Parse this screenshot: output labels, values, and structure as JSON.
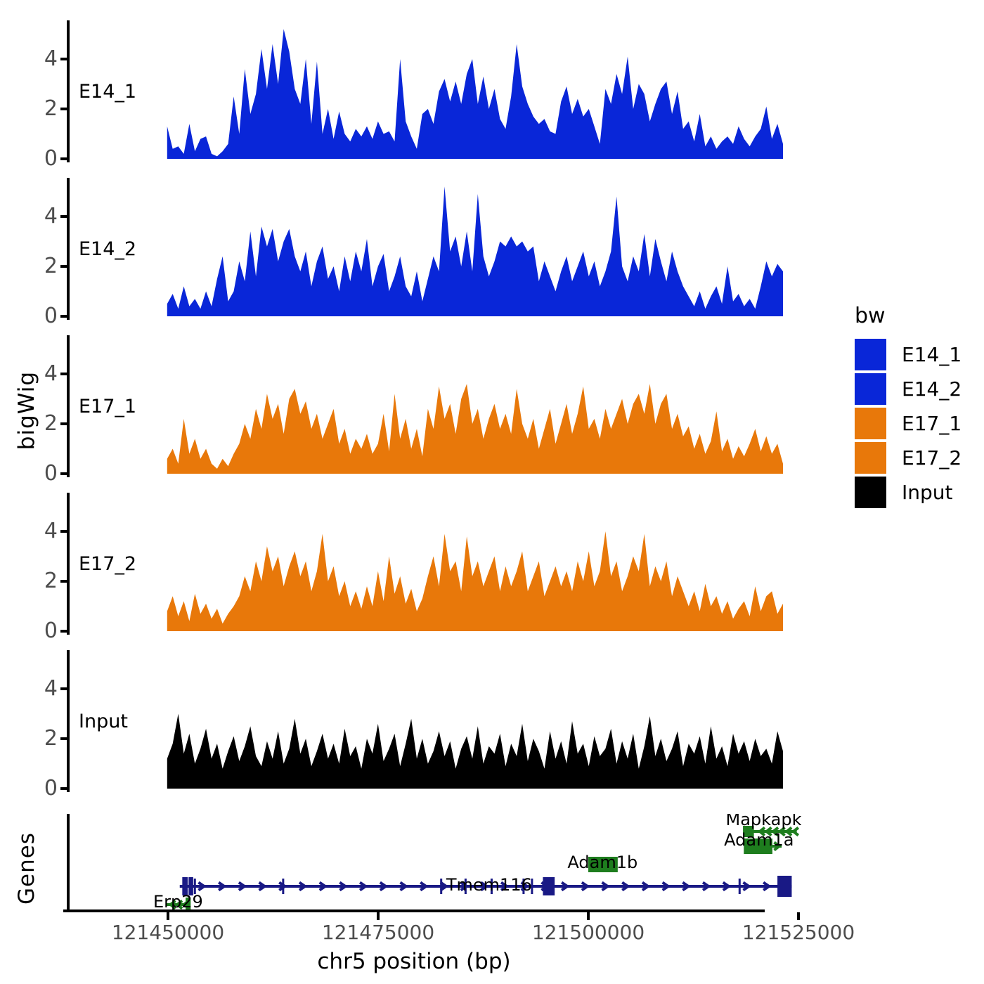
{
  "figure": {
    "ylab": "bigWig",
    "genes_panel_label": "Genes",
    "xlab": "chr5 position (bp)"
  },
  "colors": {
    "blue": "#0926D8",
    "orange": "#E8780A",
    "input_black": "#000000",
    "gene_green": "#1E7D1E",
    "gene_navy": "#191985",
    "axis_text": "#4d4d4d"
  },
  "legend": {
    "title": "bw",
    "entries": [
      {
        "label": "E14_1",
        "color": "#0926D8"
      },
      {
        "label": "E14_2",
        "color": "#0926D8"
      },
      {
        "label": "E17_1",
        "color": "#E8780A"
      },
      {
        "label": "E17_2",
        "color": "#E8780A"
      },
      {
        "label": "Input",
        "color": "#000000"
      }
    ]
  },
  "x_axis": {
    "ticks": [
      121450000,
      121475000,
      121500000,
      121525000
    ],
    "tick_labels": [
      "121450000",
      "121475000",
      "121500000",
      "121525000"
    ],
    "title": "chr5 position (bp)"
  },
  "chart_data": {
    "type": "area",
    "title": "",
    "xlabel": "chr5 position (bp)",
    "ylabel": "bigWig",
    "x_range_bp": [
      121438300,
      121525600
    ],
    "ylim": [
      0,
      5.5
    ],
    "yticks": [
      0,
      2,
      4
    ],
    "grid": false,
    "legend_position": "right",
    "tracks": [
      {
        "name": "E14_1",
        "color": "#0926D8",
        "start_bp": 121449900,
        "step_bp": 660,
        "values": [
          1.3,
          0.4,
          0.5,
          0.2,
          1.4,
          0.3,
          0.8,
          0.9,
          0.2,
          0.1,
          0.3,
          0.6,
          2.5,
          1.0,
          3.6,
          1.8,
          2.6,
          4.4,
          2.8,
          4.6,
          3.0,
          5.2,
          4.3,
          2.8,
          2.2,
          4.0,
          1.4,
          3.9,
          1.0,
          2.0,
          0.8,
          1.9,
          1.0,
          0.7,
          1.2,
          0.9,
          1.3,
          0.8,
          1.5,
          1.0,
          1.1,
          0.7,
          4.0,
          1.5,
          0.9,
          0.4,
          1.8,
          2.0,
          1.4,
          2.7,
          3.2,
          2.3,
          3.1,
          2.2,
          3.4,
          4.0,
          2.2,
          3.3,
          2.0,
          2.8,
          1.6,
          1.2,
          2.5,
          4.6,
          2.9,
          2.2,
          1.7,
          1.4,
          1.6,
          1.1,
          1.0,
          2.3,
          2.9,
          1.8,
          2.4,
          1.7,
          2.0,
          1.3,
          0.6,
          2.8,
          2.2,
          3.4,
          2.6,
          4.1,
          2.0,
          3.0,
          2.6,
          1.5,
          2.2,
          2.8,
          3.1,
          1.8,
          2.7,
          1.2,
          1.5,
          0.7,
          1.8,
          0.5,
          0.9,
          0.4,
          0.7,
          0.9,
          0.6,
          1.3,
          0.8,
          0.5,
          0.9,
          1.2,
          2.1,
          0.8,
          1.4,
          0.6
        ]
      },
      {
        "name": "E14_2",
        "color": "#0926D8",
        "start_bp": 121449900,
        "step_bp": 660,
        "values": [
          0.5,
          0.9,
          0.3,
          1.2,
          0.4,
          0.7,
          0.3,
          1.0,
          0.4,
          1.5,
          2.4,
          0.6,
          1.0,
          2.2,
          1.4,
          3.4,
          1.6,
          3.6,
          2.8,
          3.5,
          2.2,
          3.0,
          3.5,
          2.4,
          1.8,
          2.6,
          1.2,
          2.2,
          2.8,
          1.5,
          2.0,
          1.0,
          2.4,
          1.4,
          2.6,
          1.8,
          3.1,
          1.2,
          2.0,
          2.5,
          1.0,
          1.6,
          2.4,
          1.2,
          0.8,
          1.8,
          0.6,
          1.5,
          2.4,
          1.8,
          5.2,
          2.6,
          3.2,
          2.0,
          3.4,
          1.8,
          4.9,
          2.4,
          1.6,
          2.2,
          3.0,
          2.8,
          3.2,
          2.8,
          3.0,
          2.6,
          2.8,
          1.4,
          2.2,
          1.6,
          1.0,
          1.8,
          2.4,
          1.4,
          2.0,
          2.6,
          1.6,
          2.2,
          1.2,
          1.8,
          2.6,
          4.8,
          2.0,
          1.4,
          2.4,
          1.8,
          3.3,
          1.6,
          3.1,
          2.2,
          1.4,
          2.6,
          1.8,
          1.2,
          0.8,
          0.4,
          1.0,
          0.3,
          0.8,
          1.2,
          0.5,
          2.0,
          0.6,
          0.9,
          0.4,
          0.7,
          0.3,
          1.2,
          2.2,
          1.6,
          2.1,
          1.8
        ]
      },
      {
        "name": "E17_1",
        "color": "#E8780A",
        "start_bp": 121449900,
        "step_bp": 660,
        "values": [
          0.6,
          1.0,
          0.4,
          2.2,
          0.8,
          1.4,
          0.6,
          1.0,
          0.4,
          0.2,
          0.6,
          0.3,
          0.8,
          1.2,
          2.0,
          1.4,
          2.6,
          1.8,
          3.2,
          2.2,
          2.8,
          1.6,
          3.0,
          3.4,
          2.4,
          2.9,
          1.8,
          2.4,
          1.4,
          2.0,
          2.6,
          1.2,
          1.8,
          0.8,
          1.4,
          1.0,
          1.6,
          0.8,
          1.2,
          2.4,
          0.9,
          3.2,
          1.4,
          2.2,
          1.0,
          1.8,
          0.7,
          2.6,
          1.8,
          3.5,
          2.2,
          2.8,
          1.6,
          3.0,
          3.6,
          2.0,
          2.6,
          1.4,
          2.2,
          2.8,
          1.8,
          2.4,
          1.6,
          3.4,
          2.0,
          1.4,
          2.2,
          1.0,
          1.8,
          2.6,
          1.2,
          2.0,
          2.8,
          1.6,
          2.4,
          3.5,
          1.8,
          2.2,
          1.4,
          2.6,
          1.8,
          2.4,
          3.0,
          2.0,
          2.8,
          3.2,
          2.4,
          3.6,
          2.0,
          2.8,
          3.2,
          1.8,
          2.4,
          1.5,
          1.9,
          1.0,
          1.6,
          0.8,
          1.3,
          2.5,
          0.9,
          1.4,
          0.6,
          1.1,
          0.7,
          1.2,
          1.8,
          0.9,
          1.5,
          0.8,
          1.2,
          0.4
        ]
      },
      {
        "name": "E17_2",
        "color": "#E8780A",
        "start_bp": 121449900,
        "step_bp": 660,
        "values": [
          0.8,
          1.4,
          0.6,
          1.2,
          0.4,
          1.5,
          0.7,
          1.1,
          0.5,
          0.9,
          0.3,
          0.7,
          1.0,
          1.4,
          2.2,
          1.6,
          2.8,
          2.0,
          3.4,
          2.4,
          3.0,
          1.8,
          2.6,
          3.2,
          2.2,
          2.8,
          1.6,
          2.4,
          3.9,
          2.0,
          2.6,
          1.4,
          2.0,
          1.0,
          1.6,
          0.9,
          1.8,
          1.0,
          2.4,
          1.2,
          3.0,
          1.5,
          2.2,
          1.1,
          1.7,
          0.8,
          1.3,
          2.2,
          3.0,
          1.8,
          3.9,
          2.4,
          2.8,
          1.6,
          3.8,
          2.2,
          2.8,
          1.8,
          2.4,
          3.0,
          1.6,
          2.6,
          1.8,
          2.4,
          3.2,
          1.6,
          2.2,
          2.8,
          1.4,
          2.0,
          2.6,
          1.8,
          2.4,
          1.6,
          2.8,
          2.0,
          3.2,
          1.8,
          2.4,
          4.0,
          2.2,
          2.8,
          1.6,
          2.2,
          3.0,
          2.4,
          3.9,
          1.8,
          2.6,
          2.0,
          2.8,
          1.4,
          2.2,
          1.6,
          1.0,
          1.6,
          0.8,
          1.9,
          1.0,
          1.4,
          0.7,
          1.2,
          0.5,
          0.9,
          1.2,
          0.6,
          1.8,
          0.8,
          1.4,
          1.6,
          0.7,
          1.1
        ]
      },
      {
        "name": "Input",
        "color": "#000000",
        "start_bp": 121449900,
        "step_bp": 660,
        "values": [
          1.2,
          1.8,
          3.0,
          1.4,
          2.2,
          1.0,
          1.6,
          2.4,
          1.2,
          1.8,
          0.8,
          1.5,
          2.1,
          1.1,
          1.7,
          2.5,
          1.3,
          0.9,
          1.9,
          1.2,
          2.3,
          1.0,
          1.6,
          2.8,
          1.4,
          2.0,
          0.9,
          1.5,
          2.2,
          1.2,
          1.8,
          1.0,
          2.4,
          1.3,
          1.7,
          0.8,
          2.0,
          1.4,
          2.6,
          1.1,
          1.6,
          2.2,
          0.9,
          1.8,
          2.8,
          1.2,
          2.0,
          1.0,
          1.5,
          2.3,
          1.3,
          1.9,
          0.8,
          1.6,
          2.1,
          1.2,
          2.5,
          1.0,
          1.7,
          1.4,
          2.2,
          0.9,
          1.8,
          1.3,
          2.6,
          1.1,
          2.0,
          1.5,
          0.8,
          2.3,
          1.2,
          1.9,
          1.0,
          2.7,
          1.4,
          1.8,
          0.9,
          2.1,
          1.3,
          1.6,
          2.4,
          1.0,
          1.9,
          1.2,
          2.2,
          0.8,
          1.7,
          2.9,
          1.3,
          2.0,
          1.1,
          1.6,
          2.3,
          0.9,
          1.8,
          1.4,
          2.1,
          1.0,
          2.5,
          1.2,
          1.7,
          0.9,
          2.2,
          1.4,
          1.9,
          1.1,
          2.0,
          1.3,
          1.6,
          1.0,
          2.3,
          1.5
        ]
      }
    ]
  },
  "genes": [
    {
      "name": "Mapkapk5",
      "color": "#1E7D1E",
      "strand": "-",
      "row": 25,
      "label_bp": 121521500,
      "label_dy": -9,
      "asz": 7,
      "line": [
        121519600,
        121524800
      ],
      "boxes": [
        [
          121518400,
          121519700,
          16
        ]
      ],
      "arrows": {
        "from": 121520400,
        "to": 121524600,
        "step": 800,
        "dir": -1
      }
    },
    {
      "name": "Adam1a",
      "color": "#1E7D1E",
      "strand": "+",
      "row": 46,
      "label_bp": 121520300,
      "label_dy": -1,
      "asz": 7,
      "line": [
        121521900,
        121523000
      ],
      "boxes": [
        [
          121518500,
          121521900,
          22
        ]
      ],
      "arrows": {
        "from": 121522700,
        "to": 121522700,
        "step": 800,
        "dir": 1
      }
    },
    {
      "name": "Adam1b",
      "color": "#1E7D1E",
      "strand": "+",
      "row": 72,
      "label_bp": 121501700,
      "label_dy": 5,
      "asz": 7,
      "boxes": [
        [
          121500000,
          121503500,
          22
        ]
      ]
    },
    {
      "name": "Tmem116",
      "color": "#191985",
      "strand": "+",
      "row": 103,
      "label_bp": 121488200,
      "label_dy": 6,
      "asz": 8,
      "line": [
        121451400,
        121524200
      ],
      "boxes": [
        [
          121451700,
          121452350,
          26
        ],
        [
          121452450,
          121453000,
          26
        ],
        [
          121494600,
          121496000,
          26
        ],
        [
          121522500,
          121524200,
          30
        ]
      ],
      "ticks": [
        121453200,
        121463700,
        121482500,
        121485400,
        121488500,
        121492300,
        121493300,
        121518000
      ],
      "arrows": {
        "from": 121454300,
        "to": 121521600,
        "step": 2400,
        "dir": 1
      }
    },
    {
      "name": "Erp29",
      "color": "#1E7D1E",
      "strand": "-",
      "row": 129,
      "label_bp": 121451200,
      "label_dy": 4,
      "asz": 7,
      "line": [
        121449800,
        121452600
      ],
      "boxes": [
        [
          121452100,
          121452700,
          20
        ]
      ],
      "arrows": {
        "from": 121450300,
        "to": 121451900,
        "step": 800,
        "dir": -1
      }
    }
  ]
}
